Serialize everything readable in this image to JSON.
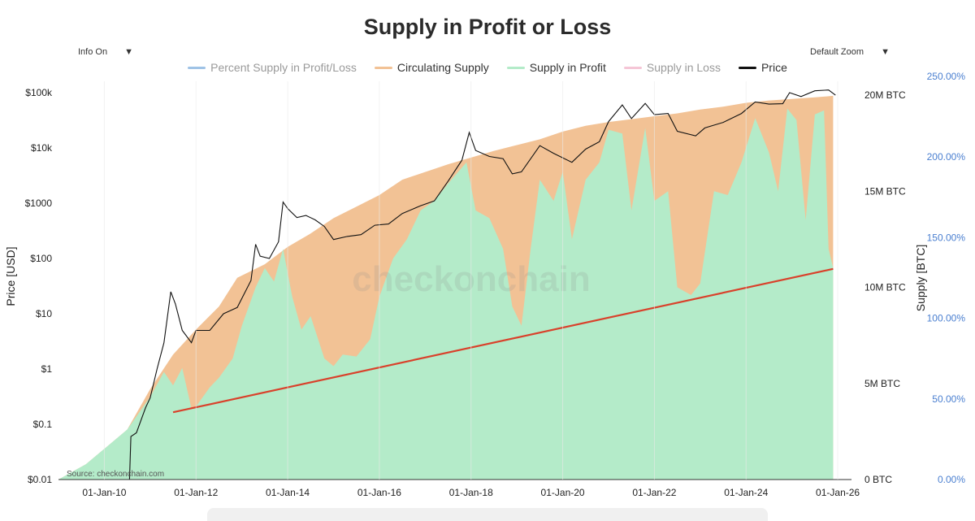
{
  "header": {
    "title": "Supply in Profit or Loss",
    "info_dropdown": "Info On",
    "zoom_dropdown": "Default Zoom",
    "caret": "▼"
  },
  "legend": [
    {
      "label": "Percent Supply in Profit/Loss",
      "color": "#9fc3e6",
      "state": "muted"
    },
    {
      "label": "Circulating Supply",
      "color": "#f2c295",
      "state": "active"
    },
    {
      "label": "Supply in Profit",
      "color": "#b4ebc9",
      "state": "active"
    },
    {
      "label": "Supply in Loss",
      "color": "#f5c6d6",
      "state": "muted"
    },
    {
      "label": "Price",
      "color": "#111111",
      "state": "active"
    }
  ],
  "watermark": "checkonchain",
  "source": "Source: checkonchain.com",
  "colors": {
    "circulating": "#f2c295",
    "profit": "#b4ebc9",
    "price": "#111111",
    "trendline": "#d9412b",
    "pct_axis": "#4a7fd0"
  },
  "chart_data": {
    "type": "area",
    "title": "Supply in Profit or Loss",
    "x_ticks": [
      "01-Jan-10",
      "01-Jan-12",
      "01-Jan-14",
      "01-Jan-16",
      "01-Jan-18",
      "01-Jan-20",
      "01-Jan-22",
      "01-Jan-24",
      "01-Jan-26"
    ],
    "x_range": [
      2009.0,
      2026.3
    ],
    "y_left": {
      "label": "Price [USD]",
      "scale": "log",
      "range": [
        0.01,
        100000
      ],
      "ticks": [
        {
          "value": 100000,
          "label": "$100k"
        },
        {
          "value": 10000,
          "label": "$10k"
        },
        {
          "value": 1000,
          "label": "$1000"
        },
        {
          "value": 100,
          "label": "$100"
        },
        {
          "value": 10,
          "label": "$10"
        },
        {
          "value": 1,
          "label": "$1"
        },
        {
          "value": 0.1,
          "label": "$0.1"
        },
        {
          "value": 0.01,
          "label": "$0.01"
        }
      ]
    },
    "y_right": {
      "label": "Supply [BTC]",
      "range": [
        0,
        20000000
      ],
      "ticks": [
        {
          "value": 20000000,
          "label": "20M BTC"
        },
        {
          "value": 15000000,
          "label": "15M BTC"
        },
        {
          "value": 10000000,
          "label": "10M BTC"
        },
        {
          "value": 5000000,
          "label": "5M BTC"
        },
        {
          "value": 0,
          "label": "0 BTC"
        }
      ]
    },
    "y_pct": {
      "range": [
        0,
        250
      ],
      "ticks": [
        {
          "value": 250,
          "label": "250.00%"
        },
        {
          "value": 200,
          "label": "200.00%"
        },
        {
          "value": 150,
          "label": "150.00%"
        },
        {
          "value": 100,
          "label": "100.00%"
        },
        {
          "value": 50,
          "label": "50.00%"
        },
        {
          "value": 0,
          "label": "0.00%"
        }
      ]
    },
    "series": [
      {
        "name": "Circulating Supply",
        "axis": "supply",
        "points": [
          [
            2009.0,
            0
          ],
          [
            2009.3,
            400000
          ],
          [
            2009.6,
            800000
          ],
          [
            2010.0,
            1600000
          ],
          [
            2010.5,
            2600000
          ],
          [
            2011.0,
            4700000
          ],
          [
            2011.5,
            6500000
          ],
          [
            2012.0,
            7800000
          ],
          [
            2012.5,
            9000000
          ],
          [
            2012.9,
            10500000
          ],
          [
            2013.5,
            11200000
          ],
          [
            2014.0,
            12100000
          ],
          [
            2014.5,
            12800000
          ],
          [
            2015.0,
            13600000
          ],
          [
            2015.5,
            14200000
          ],
          [
            2016.0,
            14800000
          ],
          [
            2016.5,
            15600000
          ],
          [
            2017.0,
            16000000
          ],
          [
            2017.5,
            16400000
          ],
          [
            2018.0,
            16750000
          ],
          [
            2018.5,
            17100000
          ],
          [
            2019.0,
            17400000
          ],
          [
            2019.5,
            17700000
          ],
          [
            2020.0,
            18100000
          ],
          [
            2020.5,
            18400000
          ],
          [
            2021.0,
            18600000
          ],
          [
            2021.5,
            18750000
          ],
          [
            2022.0,
            18900000
          ],
          [
            2022.5,
            19050000
          ],
          [
            2023.0,
            19250000
          ],
          [
            2023.5,
            19400000
          ],
          [
            2024.0,
            19600000
          ],
          [
            2024.5,
            19720000
          ],
          [
            2025.0,
            19800000
          ],
          [
            2025.5,
            19880000
          ],
          [
            2025.9,
            19960000
          ]
        ]
      },
      {
        "name": "Supply in Profit",
        "axis": "supply",
        "points": [
          [
            2009.0,
            0
          ],
          [
            2009.3,
            400000
          ],
          [
            2009.6,
            800000
          ],
          [
            2010.0,
            1600000
          ],
          [
            2010.5,
            2600000
          ],
          [
            2011.0,
            4300000
          ],
          [
            2011.3,
            5600000
          ],
          [
            2011.5,
            4900000
          ],
          [
            2011.7,
            5800000
          ],
          [
            2011.9,
            3700000
          ],
          [
            2012.0,
            3800000
          ],
          [
            2012.3,
            4800000
          ],
          [
            2012.5,
            5300000
          ],
          [
            2012.8,
            6300000
          ],
          [
            2013.0,
            8000000
          ],
          [
            2013.3,
            10000000
          ],
          [
            2013.5,
            11000000
          ],
          [
            2013.7,
            10300000
          ],
          [
            2013.9,
            12000000
          ],
          [
            2014.1,
            9500000
          ],
          [
            2014.3,
            7800000
          ],
          [
            2014.5,
            8500000
          ],
          [
            2014.8,
            6300000
          ],
          [
            2015.0,
            5900000
          ],
          [
            2015.2,
            6500000
          ],
          [
            2015.5,
            6400000
          ],
          [
            2015.8,
            7300000
          ],
          [
            2016.0,
            9500000
          ],
          [
            2016.3,
            11500000
          ],
          [
            2016.6,
            12500000
          ],
          [
            2016.9,
            14000000
          ],
          [
            2017.2,
            14500000
          ],
          [
            2017.5,
            15400000
          ],
          [
            2017.9,
            16500000
          ],
          [
            2018.1,
            14000000
          ],
          [
            2018.4,
            13600000
          ],
          [
            2018.7,
            12000000
          ],
          [
            2018.9,
            9000000
          ],
          [
            2019.1,
            8000000
          ],
          [
            2019.3,
            12000000
          ],
          [
            2019.5,
            15600000
          ],
          [
            2019.8,
            14500000
          ],
          [
            2020.0,
            16000000
          ],
          [
            2020.2,
            12500000
          ],
          [
            2020.5,
            15600000
          ],
          [
            2020.8,
            16500000
          ],
          [
            2021.0,
            18200000
          ],
          [
            2021.3,
            18000000
          ],
          [
            2021.5,
            14000000
          ],
          [
            2021.8,
            18300000
          ],
          [
            2022.0,
            14500000
          ],
          [
            2022.3,
            15000000
          ],
          [
            2022.5,
            10000000
          ],
          [
            2022.8,
            9600000
          ],
          [
            2023.0,
            10200000
          ],
          [
            2023.3,
            15000000
          ],
          [
            2023.6,
            14800000
          ],
          [
            2023.9,
            16500000
          ],
          [
            2024.2,
            18800000
          ],
          [
            2024.5,
            17000000
          ],
          [
            2024.7,
            15000000
          ],
          [
            2024.9,
            19300000
          ],
          [
            2025.1,
            18700000
          ],
          [
            2025.3,
            13500000
          ],
          [
            2025.5,
            19000000
          ],
          [
            2025.7,
            19200000
          ],
          [
            2025.8,
            12000000
          ],
          [
            2025.9,
            11000000
          ]
        ]
      },
      {
        "name": "Price",
        "axis": "price",
        "points": [
          [
            2010.55,
            0.01
          ],
          [
            2010.58,
            0.06
          ],
          [
            2010.7,
            0.07
          ],
          [
            2010.9,
            0.2
          ],
          [
            2011.0,
            0.3
          ],
          [
            2011.15,
            1
          ],
          [
            2011.3,
            3
          ],
          [
            2011.45,
            25
          ],
          [
            2011.55,
            15
          ],
          [
            2011.7,
            5
          ],
          [
            2011.9,
            3
          ],
          [
            2012.0,
            5
          ],
          [
            2012.3,
            5
          ],
          [
            2012.6,
            10
          ],
          [
            2012.9,
            13
          ],
          [
            2013.2,
            40
          ],
          [
            2013.3,
            180
          ],
          [
            2013.4,
            110
          ],
          [
            2013.6,
            100
          ],
          [
            2013.8,
            200
          ],
          [
            2013.9,
            1050
          ],
          [
            2014.0,
            800
          ],
          [
            2014.2,
            550
          ],
          [
            2014.4,
            600
          ],
          [
            2014.6,
            500
          ],
          [
            2014.8,
            380
          ],
          [
            2015.0,
            220
          ],
          [
            2015.3,
            250
          ],
          [
            2015.6,
            270
          ],
          [
            2015.9,
            400
          ],
          [
            2016.2,
            420
          ],
          [
            2016.5,
            650
          ],
          [
            2016.9,
            900
          ],
          [
            2017.2,
            1100
          ],
          [
            2017.5,
            2500
          ],
          [
            2017.8,
            6000
          ],
          [
            2017.96,
            19000
          ],
          [
            2018.1,
            9000
          ],
          [
            2018.4,
            7000
          ],
          [
            2018.7,
            6400
          ],
          [
            2018.9,
            3400
          ],
          [
            2019.1,
            3700
          ],
          [
            2019.5,
            11000
          ],
          [
            2019.8,
            8000
          ],
          [
            2020.2,
            5500
          ],
          [
            2020.5,
            9500
          ],
          [
            2020.8,
            13000
          ],
          [
            2021.0,
            30000
          ],
          [
            2021.3,
            60000
          ],
          [
            2021.5,
            34000
          ],
          [
            2021.8,
            64000
          ],
          [
            2022.0,
            40000
          ],
          [
            2022.3,
            42000
          ],
          [
            2022.5,
            20000
          ],
          [
            2022.9,
            16500
          ],
          [
            2023.1,
            23000
          ],
          [
            2023.5,
            29000
          ],
          [
            2023.9,
            42000
          ],
          [
            2024.2,
            68000
          ],
          [
            2024.5,
            62000
          ],
          [
            2024.8,
            63000
          ],
          [
            2024.95,
            100000
          ],
          [
            2025.2,
            85000
          ],
          [
            2025.5,
            108000
          ],
          [
            2025.8,
            112000
          ],
          [
            2025.95,
            90000
          ]
        ]
      }
    ],
    "annotations": [
      {
        "type": "trendline",
        "axis": "supply",
        "from": [
          2011.5,
          3500000
        ],
        "to": [
          2025.9,
          10960000
        ]
      }
    ],
    "grid": false
  }
}
